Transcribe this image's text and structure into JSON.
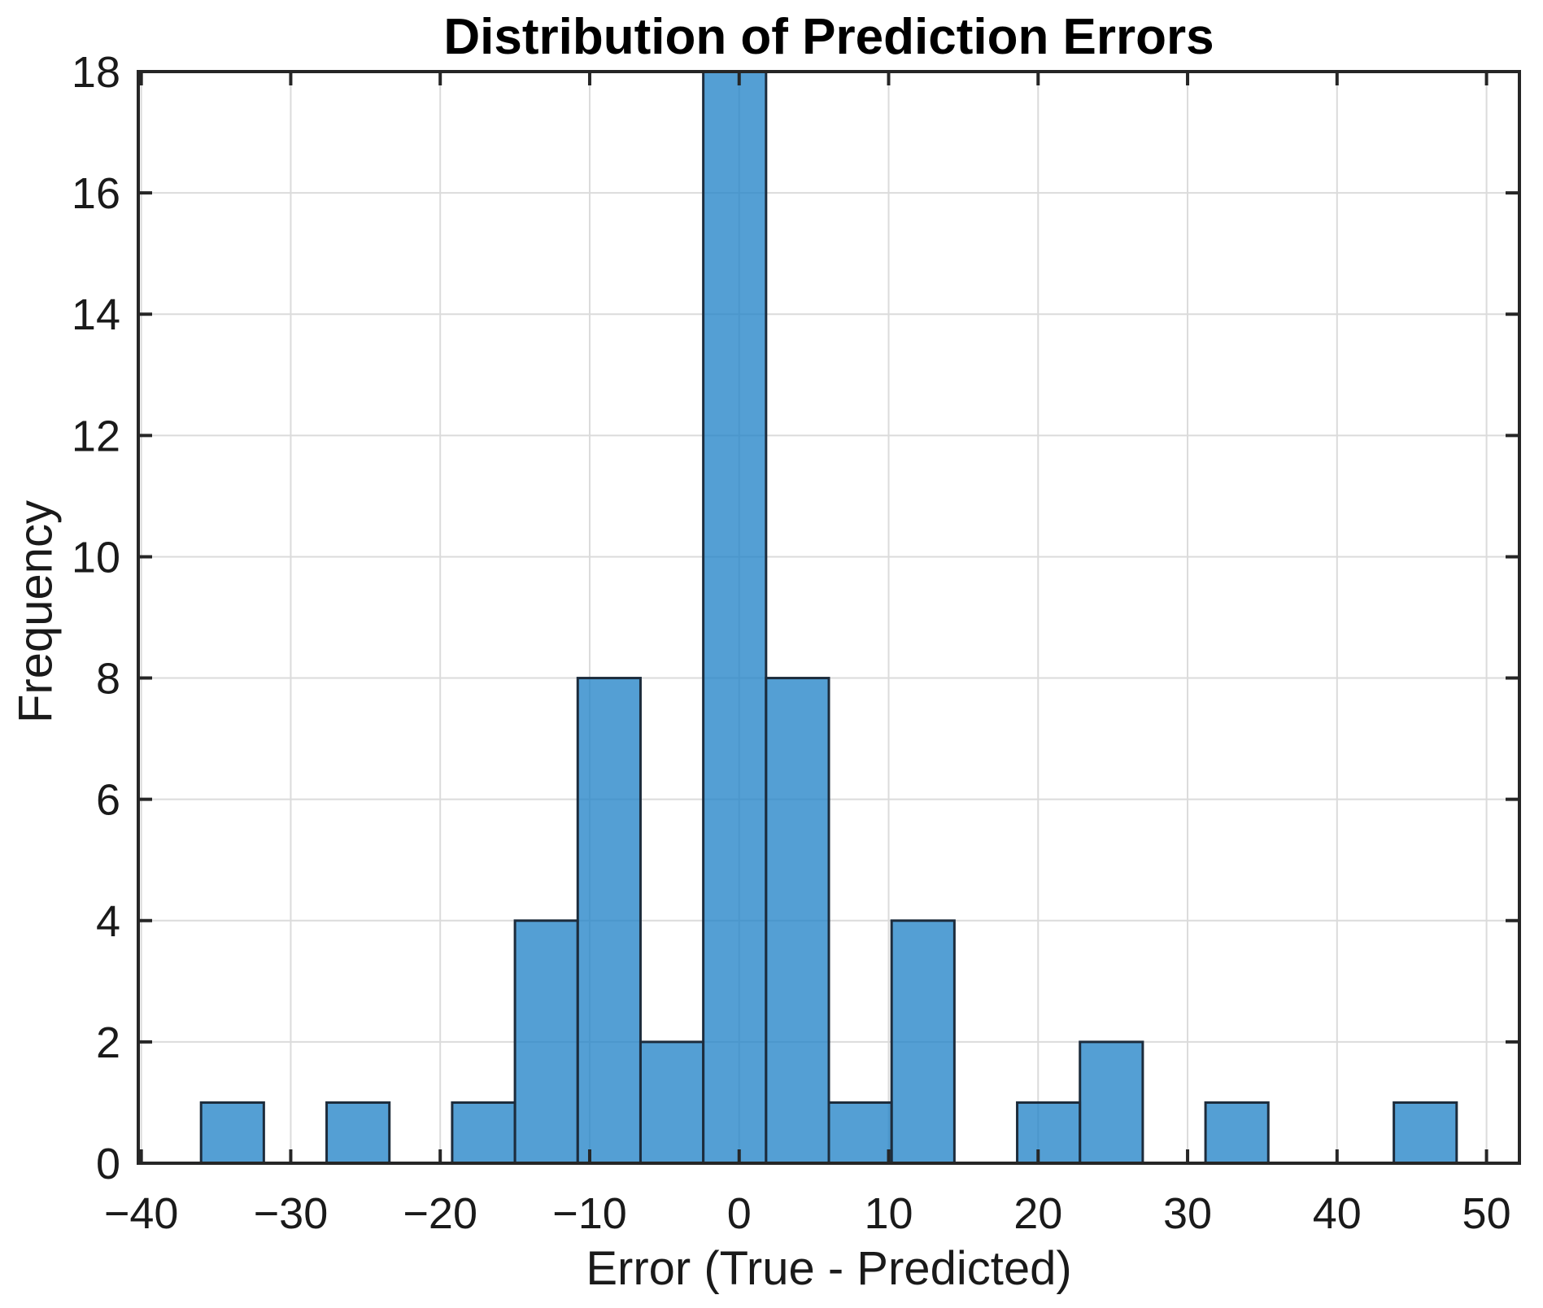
{
  "title": "Distribution of Prediction Errors",
  "xlabel": "Error (True - Predicted)",
  "ylabel": "Frequency",
  "chart_data": {
    "type": "bar",
    "subtype": "histogram",
    "title": "Distribution of Prediction Errors",
    "xlabel": "Error (True - Predicted)",
    "ylabel": "Frequency",
    "bin_edges": [
      -36.0,
      -31.8,
      -27.6,
      -23.4,
      -19.2,
      -15.0,
      -10.8,
      -6.6,
      -2.4,
      1.8,
      6.0,
      10.2,
      14.4,
      18.6,
      22.8,
      27.0,
      31.2,
      35.4,
      39.6,
      43.8,
      48.0
    ],
    "counts": [
      1,
      0,
      1,
      0,
      1,
      4,
      8,
      2,
      18,
      8,
      1,
      4,
      0,
      1,
      2,
      0,
      1,
      0,
      0,
      1
    ],
    "xlim": [
      -40.2,
      52.2
    ],
    "ylim": [
      0,
      18
    ],
    "x_ticks": [
      -40,
      -30,
      -20,
      -10,
      0,
      10,
      20,
      30,
      40,
      50
    ],
    "x_tick_labels": [
      "−40",
      "−30",
      "−20",
      "−10",
      "0",
      "10",
      "20",
      "30",
      "40",
      "50"
    ],
    "y_ticks": [
      0,
      2,
      4,
      6,
      8,
      10,
      12,
      14,
      16,
      18
    ],
    "y_tick_labels": [
      "0",
      "2",
      "4",
      "6",
      "8",
      "10",
      "12",
      "14",
      "16",
      "18"
    ],
    "grid": true,
    "legend": false,
    "colors": {
      "bar_fill": "rgba(36,132,200,0.78)",
      "bar_edge": "#1d2c3c",
      "grid_color": "#dbdbdb",
      "spine_color": "#262626",
      "tick_color": "#262626",
      "text_color": "#1a1a1a",
      "title_color": "#000000",
      "background": "#ffffff"
    }
  }
}
